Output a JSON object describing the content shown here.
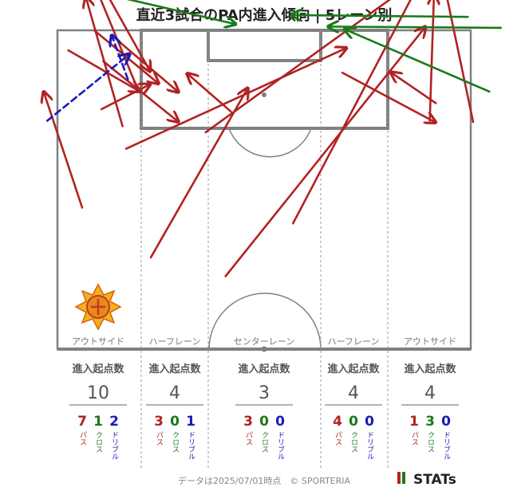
{
  "title": "直近3試合のPA内進入傾向 | 5レーン別",
  "footer": "データは2025/07/01時点　© SPORTERIA",
  "brand": "STATs",
  "lanes": [
    {
      "label": "アウトサイド",
      "stat_label": "進入起点数",
      "total": "10",
      "pass": "7",
      "cross": "1",
      "dribble": "2"
    },
    {
      "label": "ハーフレーン",
      "stat_label": "進入起点数",
      "total": "4",
      "pass": "3",
      "cross": "0",
      "dribble": "1"
    },
    {
      "label": "センターレーン",
      "stat_label": "進入起点数",
      "total": "3",
      "pass": "3",
      "cross": "0",
      "dribble": "0"
    },
    {
      "label": "ハーフレーン",
      "stat_label": "進入起点数",
      "total": "4",
      "pass": "4",
      "cross": "0",
      "dribble": "0"
    },
    {
      "label": "アウトサイド",
      "stat_label": "進入起点数",
      "total": "4",
      "pass": "1",
      "cross": "3",
      "dribble": "0"
    }
  ],
  "type_labels": {
    "pass": "パス",
    "cross": "クロス",
    "dribble": "ドリブル"
  },
  "colors": {
    "pass": "#b22222",
    "cross": "#1a7a1a",
    "dribble": "#1a1ab8",
    "pitch_line": "#808080"
  },
  "chart_data": {
    "type": "pitch-arrows",
    "series": [
      {
        "name": "パス",
        "color": "#b22222",
        "arrows": [
          [
            -20.9,
            42.6,
            -30.2,
            65.0
          ],
          [
            -30.2,
            23.3,
            -36.6,
            42.4
          ],
          [
            -32.5,
            49.2,
            -20.6,
            42.4
          ],
          [
            -27.0,
            39.5,
            -18.9,
            43.6
          ],
          [
            -28.1,
            52.4,
            -17.5,
            43.7
          ],
          [
            -23.8,
            50.4,
            -14.2,
            42.3
          ],
          [
            -27.3,
            60.6,
            -18.9,
            45.7
          ],
          [
            -23.5,
            36.7,
            -29.6,
            58.0
          ],
          [
            -26.7,
            47.4,
            -14.2,
            37.4
          ],
          [
            -5.5,
            39.1,
            -12.8,
            45.4
          ],
          [
            -18.8,
            15.1,
            -2.7,
            43.0
          ],
          [
            -22.9,
            33.0,
            13.7,
            49.6
          ],
          [
            -9.7,
            35.7,
            27.5,
            62.3
          ],
          [
            -6.4,
            12.0,
            26.8,
            53.1
          ],
          [
            4.8,
            20.7,
            26.9,
            62.4
          ],
          [
            13.0,
            45.5,
            28.5,
            37.3
          ],
          [
            28.5,
            40.5,
            21.0,
            45.6
          ],
          [
            27.5,
            37.6,
            28.2,
            58.5
          ],
          [
            34.7,
            37.4,
            28.5,
            66.7
          ]
        ]
      },
      {
        "name": "クロス",
        "color": "#1a7a1a",
        "arrows": [
          [
            33.8,
            54.7,
            4.5,
            55.0
          ],
          [
            39.3,
            52.9,
            10.6,
            53.1
          ],
          [
            37.4,
            42.4,
            13.3,
            52.7
          ],
          [
            -27.4,
            58.7,
            -4.7,
            53.5
          ]
        ]
      },
      {
        "name": "ドリブル",
        "color": "#1a1ab8",
        "arrows": [
          [
            -36.0,
            37.6,
            -22.3,
            48.6
          ],
          [
            -22.6,
            44.4,
            -25.3,
            51.7
          ],
          [
            -28.6,
            57.7,
            -22.1,
            59.3
          ]
        ]
      }
    ],
    "lanes": [
      "アウトサイド",
      "ハーフレーン",
      "センターレーン",
      "ハーフレーン",
      "アウトサイド"
    ]
  }
}
